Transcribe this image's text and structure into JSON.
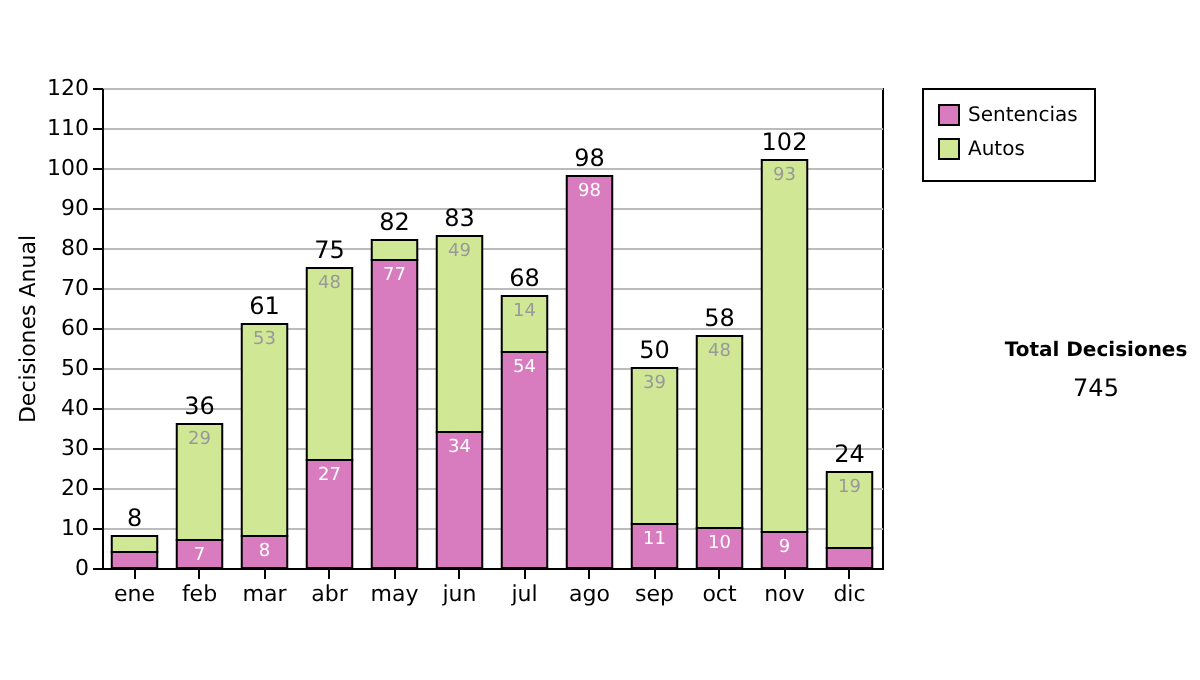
{
  "chart_data": {
    "type": "bar",
    "stacked": true,
    "ylabel": "Decisiones Anual",
    "categories": [
      "ene",
      "feb",
      "mar",
      "abr",
      "may",
      "jun",
      "jul",
      "ago",
      "sep",
      "oct",
      "nov",
      "dic"
    ],
    "series": [
      {
        "name": "Sentencias",
        "color": "#d97bbf",
        "values": [
          4,
          7,
          8,
          27,
          77,
          34,
          54,
          98,
          11,
          10,
          9,
          5
        ],
        "value_labels": [
          null,
          "7",
          "8",
          "27",
          "77",
          "34",
          "54",
          "98",
          "11",
          "10",
          "9",
          null
        ]
      },
      {
        "name": "Autos",
        "color": "#d0e896",
        "values": [
          4,
          29,
          53,
          48,
          5,
          49,
          14,
          null,
          39,
          48,
          93,
          19
        ],
        "value_labels": [
          null,
          "29",
          "53",
          "48",
          null,
          "49",
          "14",
          null,
          "39",
          "48",
          "93",
          "19"
        ]
      }
    ],
    "totals": [
      "8",
      "36",
      "61",
      "75",
      "82",
      "83",
      "68",
      "98",
      "50",
      "58",
      "102",
      "24"
    ],
    "ylim": [
      0,
      120
    ],
    "yticks": [
      0,
      10,
      20,
      30,
      40,
      50,
      60,
      70,
      80,
      90,
      100,
      110,
      120
    ],
    "grid": "y",
    "legend": "right",
    "annotations": [
      "Total Decisiones",
      "745"
    ]
  }
}
